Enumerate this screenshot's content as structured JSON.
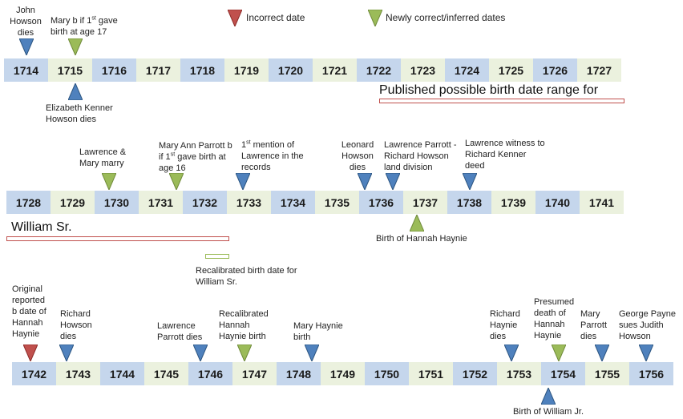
{
  "legend": {
    "incorrect": "Incorrect date",
    "correct": "Newly correct/inferred dates"
  },
  "rows": [
    [
      "1714",
      "1715",
      "1716",
      "1717",
      "1718",
      "1719",
      "1720",
      "1721",
      "1722",
      "1723",
      "1724",
      "1725",
      "1726",
      "1727"
    ],
    [
      "1728",
      "1729",
      "1730",
      "1731",
      "1732",
      "1733",
      "1734",
      "1735",
      "1736",
      "1737",
      "1738",
      "1739",
      "1740",
      "1741"
    ],
    [
      "1742",
      "1743",
      "1744",
      "1745",
      "1746",
      "1747",
      "1748",
      "1749",
      "1750",
      "1751",
      "1752",
      "1753",
      "1754",
      "1755",
      "1756"
    ]
  ],
  "colors": {
    "blue_cell": "#c5d6ec",
    "green_cell": "#ebf1de",
    "red": "#c0504d",
    "green": "#9bbb59",
    "blue": "#4f81bd"
  },
  "notes": {
    "john_howson_dies": "John Howson dies",
    "mary_birth_17_a": "Mary  b if 1",
    "mary_birth_17_sup": "st",
    "mary_birth_17_b": " gave birth at age 17",
    "elizabeth_kenner_dies": "Elizabeth Kenner Howson dies",
    "published_range": "Published possible  birth date range for",
    "william_sr": "William Sr.",
    "lawrence_mary_marry": "Lawrence & Mary marry",
    "mary_ann_a": "Mary Ann Parrott b if 1",
    "mary_ann_sup": "st",
    "mary_ann_b": " gave birth at age 16",
    "first_mention_sup": "st",
    "first_mention_a": "1",
    "first_mention_b": " mention of Lawrence in the records",
    "leonard_dies": "Leonard Howson dies",
    "land_division": "Lawrence Parrott - Richard Howson land division",
    "lawrence_witness": "Lawrence witness to Richard Kenner deed",
    "birth_hannah": "Birth of Hannah Haynie",
    "recalibrated_william": "Recalibrated birth date for William Sr.",
    "original_reported": "Original reported b date of Hannah Haynie",
    "richard_howson_dies": "Richard Howson dies",
    "lawrence_parrott_dies": "Lawrence Parrott dies",
    "recalibrated_hannah": "Recalibrated Hannah Haynie birth",
    "mary_haynie_birth": "Mary Haynie birth",
    "richard_haynie_dies": "Richard Haynie dies",
    "presumed_death": "Presumed death of Hannah Haynie",
    "mary_parrott_dies": "Mary Parrott dies",
    "george_payne": "George Payne sues Judith Howson",
    "birth_william_jr": "Birth of William Jr."
  }
}
